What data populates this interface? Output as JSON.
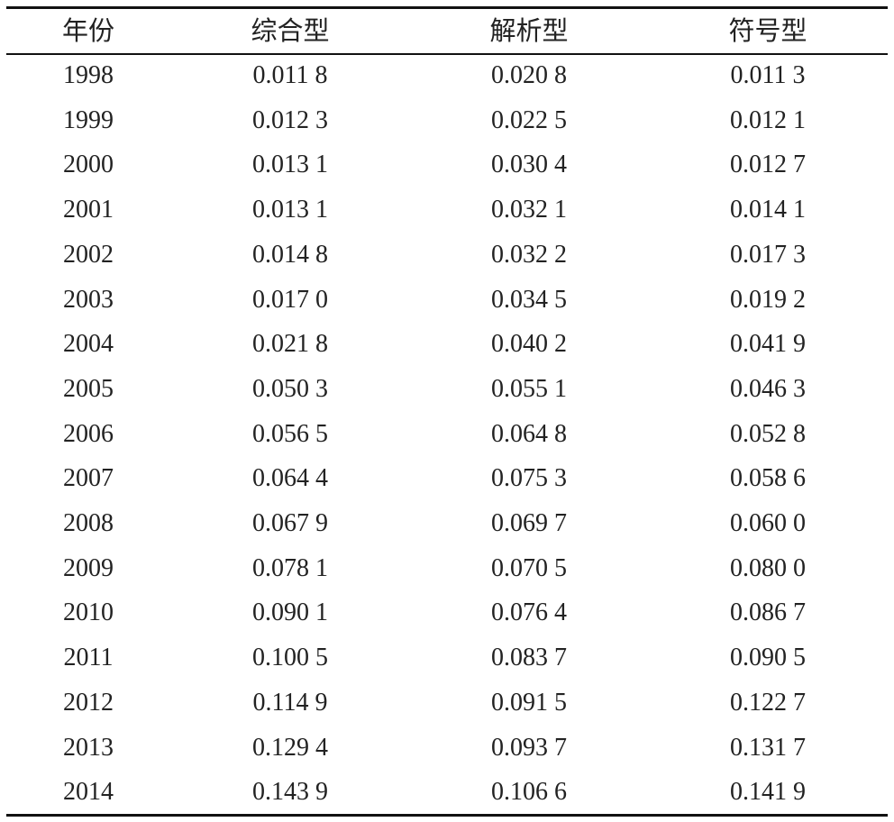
{
  "table": {
    "header": [
      "年份",
      "综合型",
      "解析型",
      "符号型"
    ],
    "rows": [
      [
        "1998",
        "0.011 8",
        "0.020 8",
        "0.011 3"
      ],
      [
        "1999",
        "0.012 3",
        "0.022 5",
        "0.012 1"
      ],
      [
        "2000",
        "0.013 1",
        "0.030 4",
        "0.012 7"
      ],
      [
        "2001",
        "0.013 1",
        "0.032 1",
        "0.014 1"
      ],
      [
        "2002",
        "0.014 8",
        "0.032 2",
        "0.017 3"
      ],
      [
        "2003",
        "0.017 0",
        "0.034 5",
        "0.019 2"
      ],
      [
        "2004",
        "0.021 8",
        "0.040 2",
        "0.041 9"
      ],
      [
        "2005",
        "0.050 3",
        "0.055 1",
        "0.046 3"
      ],
      [
        "2006",
        "0.056 5",
        "0.064 8",
        "0.052 8"
      ],
      [
        "2007",
        "0.064 4",
        "0.075 3",
        "0.058 6"
      ],
      [
        "2008",
        "0.067 9",
        "0.069 7",
        "0.060 0"
      ],
      [
        "2009",
        "0.078 1",
        "0.070 5",
        "0.080 0"
      ],
      [
        "2010",
        "0.090 1",
        "0.076 4",
        "0.086 7"
      ],
      [
        "2011",
        "0.100 5",
        "0.083 7",
        "0.090 5"
      ],
      [
        "2012",
        "0.114 9",
        "0.091 5",
        "0.122 7"
      ],
      [
        "2013",
        "0.129 4",
        "0.093 7",
        "0.131 7"
      ],
      [
        "2014",
        "0.143 9",
        "0.106 6",
        "0.141 9"
      ]
    ]
  }
}
